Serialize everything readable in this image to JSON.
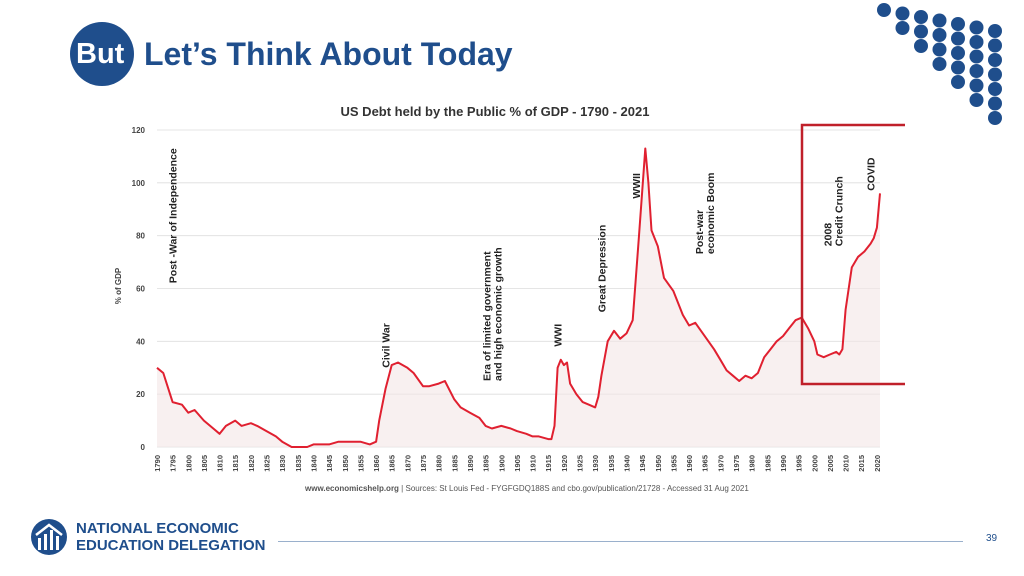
{
  "slide": {
    "title_prefix": "But",
    "title": "Let’s Think About Today",
    "page_number": "39",
    "logo_line1": "NATIONAL ECONOMIC",
    "logo_line2": "EDUCATION DELEGATION",
    "accent_color": "#1f4e8c",
    "highlight_color": "#c0202a"
  },
  "chart_data": {
    "type": "area",
    "title": "US Debt held by the Public % of GDP - 1790 - 2021",
    "ylabel": "% of GDP",
    "xlabel": "",
    "xlim": [
      1790,
      2021
    ],
    "ylim": [
      0,
      120
    ],
    "yticks": [
      0,
      20,
      40,
      60,
      80,
      100,
      120
    ],
    "xticks": [
      1790,
      1795,
      1800,
      1805,
      1810,
      1815,
      1820,
      1825,
      1830,
      1835,
      1840,
      1845,
      1850,
      1855,
      1860,
      1865,
      1870,
      1875,
      1880,
      1885,
      1890,
      1895,
      1900,
      1905,
      1910,
      1915,
      1920,
      1925,
      1930,
      1935,
      1940,
      1945,
      1950,
      1955,
      1960,
      1965,
      1970,
      1975,
      1980,
      1985,
      1990,
      1995,
      2000,
      2005,
      2010,
      2015,
      2020
    ],
    "grid": true,
    "series": [
      {
        "color": "#e02030",
        "x": [
          1790,
          1792,
          1795,
          1798,
          1800,
          1802,
          1805,
          1808,
          1810,
          1812,
          1815,
          1817,
          1820,
          1822,
          1825,
          1828,
          1830,
          1833,
          1835,
          1838,
          1840,
          1843,
          1845,
          1848,
          1850,
          1852,
          1855,
          1858,
          1860,
          1861,
          1863,
          1865,
          1867,
          1870,
          1872,
          1875,
          1877,
          1880,
          1882,
          1885,
          1887,
          1890,
          1893,
          1895,
          1897,
          1900,
          1903,
          1905,
          1908,
          1910,
          1912,
          1915,
          1916,
          1917,
          1918,
          1919,
          1920,
          1921,
          1922,
          1924,
          1926,
          1928,
          1930,
          1931,
          1932,
          1934,
          1936,
          1938,
          1940,
          1942,
          1944,
          1946,
          1947,
          1948,
          1950,
          1952,
          1955,
          1958,
          1960,
          1962,
          1965,
          1968,
          1970,
          1972,
          1974,
          1976,
          1978,
          1980,
          1982,
          1984,
          1986,
          1988,
          1990,
          1992,
          1994,
          1996,
          1998,
          2000,
          2001,
          2003,
          2005,
          2007,
          2008,
          2009,
          2010,
          2011,
          2012,
          2014,
          2016,
          2018,
          2019,
          2020,
          2021
        ],
        "y": [
          30,
          28,
          17,
          16,
          13,
          14,
          10,
          7,
          5,
          8,
          10,
          8,
          9,
          8,
          6,
          4,
          2,
          0,
          0,
          0,
          1,
          1,
          1,
          2,
          2,
          2,
          2,
          1,
          2,
          10,
          22,
          31,
          32,
          30,
          28,
          23,
          23,
          24,
          25,
          18,
          15,
          13,
          11,
          8,
          7,
          8,
          7,
          6,
          5,
          4,
          4,
          3,
          3,
          8,
          30,
          33,
          31,
          32,
          24,
          20,
          17,
          16,
          15,
          19,
          27,
          40,
          44,
          41,
          43,
          48,
          80,
          113,
          100,
          82,
          76,
          64,
          59,
          50,
          46,
          47,
          42,
          37,
          33,
          29,
          27,
          25,
          27,
          26,
          28,
          34,
          37,
          40,
          42,
          45,
          48,
          49,
          45,
          40,
          35,
          34,
          35,
          36,
          35,
          37,
          52,
          60,
          68,
          72,
          74,
          77,
          79,
          83,
          96
        ]
      }
    ],
    "annotations": [
      {
        "x": 1795,
        "y": 62,
        "text": "Post -War of Independence"
      },
      {
        "x": 1863,
        "y": 30,
        "text": "Civil War"
      },
      {
        "x": 1897,
        "y": 25,
        "text": "Era of limited government"
      },
      {
        "x": 1897,
        "y": 25,
        "text": "and high economic growth"
      },
      {
        "x": 1918,
        "y": 38,
        "text": "WWI"
      },
      {
        "x": 1932,
        "y": 51,
        "text": "Great Depression"
      },
      {
        "x": 1943,
        "y": 94,
        "text": "WWII"
      },
      {
        "x": 1965,
        "y": 73,
        "text": "Post-war"
      },
      {
        "x": 1965,
        "y": 73,
        "text": "economic Boom"
      },
      {
        "x": 2006,
        "y": 76,
        "text": "2008"
      },
      {
        "x": 2006,
        "y": 76,
        "text": "Credit Crunch"
      },
      {
        "x": 2018,
        "y": 97,
        "text": "COVID"
      }
    ],
    "source_bold": "www.economicshelp.org",
    "source": " | Sources: St Louis Fed - FYGFGDQ188S and cbo.gov/publication/21728 - Accessed 31 Aug 2021"
  }
}
